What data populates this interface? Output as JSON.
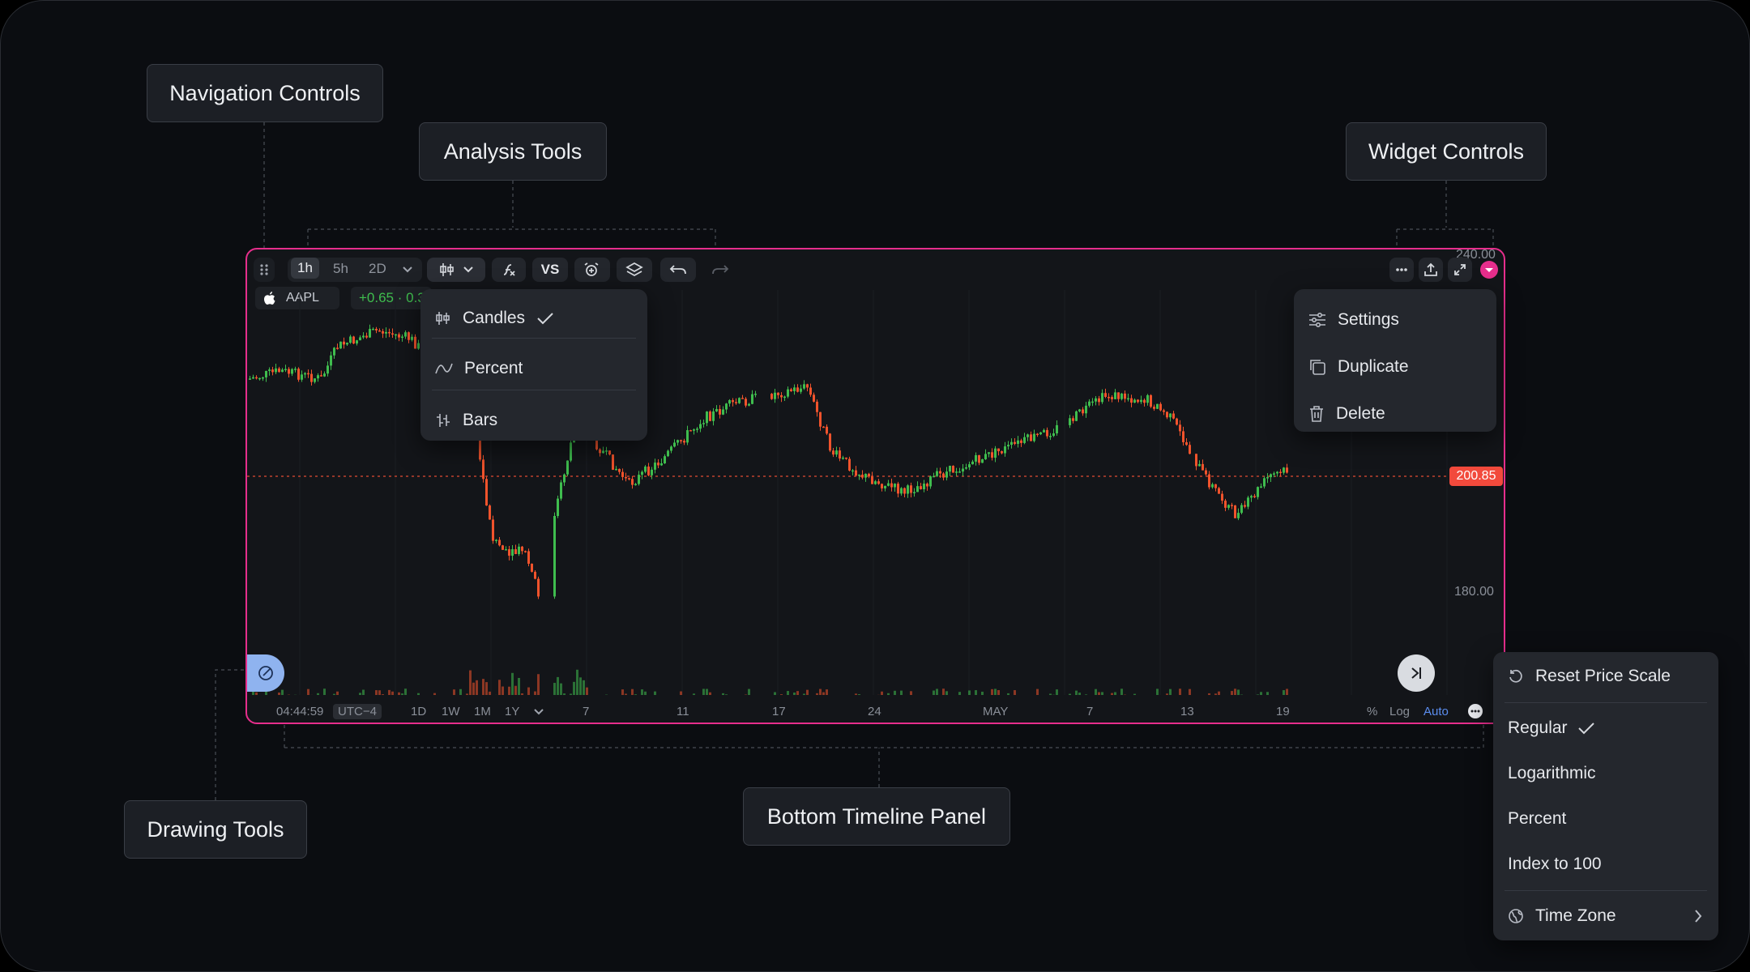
{
  "callouts": {
    "navigation": "Navigation Controls",
    "analysis": "Analysis Tools",
    "widget": "Widget Controls",
    "drawing": "Drawing Tools",
    "timeline": "Bottom Timeline Panel"
  },
  "toolbar": {
    "timeframes": [
      "1h",
      "5h",
      "2D"
    ],
    "active_timeframe": "1h",
    "vs_label": "VS",
    "top_price_label": "240.00"
  },
  "symbol": {
    "ticker": "AAPL",
    "change": "+0.65 · 0.3"
  },
  "chart_type_menu": {
    "items": [
      {
        "label": "Candles",
        "icon": "candles-icon",
        "selected": true
      },
      {
        "label": "Percent",
        "icon": "percent-line-icon",
        "selected": false
      },
      {
        "label": "Bars",
        "icon": "bars-icon",
        "selected": false
      }
    ]
  },
  "widget_menu": {
    "items": [
      {
        "label": "Settings",
        "icon": "sliders-icon"
      },
      {
        "label": "Duplicate",
        "icon": "duplicate-icon"
      },
      {
        "label": "Delete",
        "icon": "trash-icon"
      }
    ]
  },
  "price_axis": {
    "current_price": "200.85",
    "label_180": "180.00"
  },
  "bottom_bar": {
    "time": "04:44:59",
    "timezone": "UTC−4",
    "ranges": [
      "1D",
      "1W",
      "1M",
      "1Y"
    ],
    "dates": [
      "7",
      "11",
      "17",
      "24",
      "MAY",
      "7",
      "13",
      "19"
    ],
    "scale_percent": "%",
    "scale_log": "Log",
    "scale_auto": "Auto"
  },
  "scale_menu": {
    "reset": "Reset Price Scale",
    "regular": "Regular",
    "logarithmic": "Logarithmic",
    "percent": "Percent",
    "index": "Index to 100",
    "timezone": "Time Zone"
  },
  "colors": {
    "accent_border": "#e62e8c",
    "up": "#3fbd4e",
    "down": "#f0532c",
    "price_tag": "#f24a3c"
  }
}
